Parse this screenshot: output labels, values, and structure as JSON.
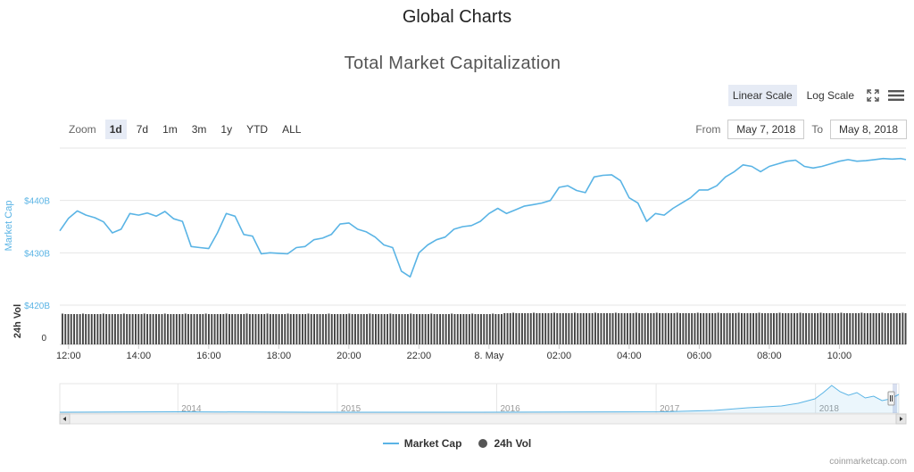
{
  "page_title": "Global Charts",
  "controls": {
    "zoom_label": "Zoom",
    "zoom_options": [
      "1d",
      "7d",
      "1m",
      "3m",
      "1y",
      "YTD",
      "ALL"
    ],
    "zoom_active": "1d",
    "scale_linear": "Linear Scale",
    "scale_log": "Log Scale",
    "scale_active": "Linear Scale",
    "from_label": "From",
    "from_value": "May 7, 2018",
    "to_label": "To",
    "to_value": "May 8, 2018"
  },
  "legend": {
    "market_cap": "Market Cap",
    "volume": "24h Vol"
  },
  "credits": "coinmarketcap.com",
  "colors": {
    "line": "#5ab4e5",
    "volume_bar": "#444444",
    "axis_label_blue": "#5ab4e5",
    "active_btn": "#e6ebf5"
  },
  "icons": {
    "fullscreen": "fullscreen-icon",
    "menu": "menu-icon"
  },
  "chart_data": {
    "type": "line",
    "title": "Total Market Capitalization",
    "ylabel": "Market Cap",
    "ylabel_volume": "24h Vol",
    "ylim": [
      420,
      450
    ],
    "yticks": [
      {
        "value": 440,
        "label": "$440B"
      },
      {
        "value": 430,
        "label": "$430B"
      },
      {
        "value": 420,
        "label": "$420B"
      }
    ],
    "volume_ytick": "0",
    "xlim": [
      11.75,
      35.9
    ],
    "xticks": [
      {
        "value": 12,
        "label": "12:00"
      },
      {
        "value": 14,
        "label": "14:00"
      },
      {
        "value": 16,
        "label": "16:00"
      },
      {
        "value": 18,
        "label": "18:00"
      },
      {
        "value": 20,
        "label": "20:00"
      },
      {
        "value": 22,
        "label": "22:00"
      },
      {
        "value": 24,
        "label": "8. May"
      },
      {
        "value": 26,
        "label": "02:00"
      },
      {
        "value": 28,
        "label": "04:00"
      },
      {
        "value": 30,
        "label": "06:00"
      },
      {
        "value": 32,
        "label": "08:00"
      },
      {
        "value": 34,
        "label": "10:00"
      }
    ],
    "market_cap_series": {
      "name": "Market Cap",
      "x": [
        11.75,
        12.0,
        12.25,
        12.5,
        12.75,
        13.0,
        13.25,
        13.5,
        13.75,
        14.0,
        14.25,
        14.5,
        14.75,
        15.0,
        15.25,
        15.5,
        15.75,
        16.0,
        16.25,
        16.5,
        16.75,
        17.0,
        17.25,
        17.5,
        17.75,
        18.0,
        18.25,
        18.5,
        18.75,
        19.0,
        19.25,
        19.5,
        19.75,
        20.0,
        20.25,
        20.5,
        20.75,
        21.0,
        21.25,
        21.5,
        21.75,
        22.0,
        22.25,
        22.5,
        22.75,
        23.0,
        23.25,
        23.5,
        23.75,
        24.0,
        24.25,
        24.5,
        24.75,
        25.0,
        25.25,
        25.5,
        25.75,
        26.0,
        26.25,
        26.5,
        26.75,
        27.0,
        27.25,
        27.5,
        27.75,
        28.0,
        28.25,
        28.5,
        28.75,
        29.0,
        29.25,
        29.5,
        29.75,
        30.0,
        30.25,
        30.5,
        30.75,
        31.0,
        31.25,
        31.5,
        31.75,
        32.0,
        32.25,
        32.5,
        32.75,
        33.0,
        33.25,
        33.5,
        33.75,
        34.0,
        34.25,
        34.5,
        34.75,
        35.0,
        35.25,
        35.5,
        35.75,
        35.9
      ],
      "values": [
        434.2,
        436.6,
        438.0,
        437.2,
        436.7,
        435.9,
        433.8,
        434.5,
        437.5,
        437.2,
        437.6,
        437.0,
        437.9,
        436.5,
        436.0,
        431.2,
        431.0,
        430.8,
        433.8,
        437.5,
        437.0,
        433.5,
        433.2,
        429.8,
        430.0,
        429.9,
        429.8,
        431.0,
        431.2,
        432.5,
        432.8,
        433.5,
        435.5,
        435.7,
        434.5,
        434.0,
        433.0,
        431.5,
        431.0,
        426.5,
        425.4,
        430.0,
        431.5,
        432.5,
        433.0,
        434.5,
        435.0,
        435.2,
        436.0,
        437.5,
        438.5,
        437.5,
        438.2,
        438.9,
        439.2,
        439.5,
        440.0,
        442.5,
        442.8,
        441.9,
        441.5,
        444.5,
        444.8,
        444.9,
        443.8,
        440.5,
        439.5,
        436.0,
        437.5,
        437.2,
        438.5,
        439.5,
        440.5,
        442.0,
        442.0,
        442.8,
        444.5,
        445.5,
        446.8,
        446.5,
        445.5,
        446.5,
        447.0,
        447.5,
        447.7,
        446.5,
        446.2,
        446.5,
        447.0,
        447.5,
        447.8,
        447.5,
        447.6,
        447.8,
        448.0,
        447.9,
        448.0,
        447.8
      ]
    },
    "volume_series": {
      "name": "24h Vol",
      "description_only": false
    },
    "navigator": {
      "labels": [
        "2014",
        "2015",
        "2016",
        "2017",
        "2018"
      ],
      "label_positions": [
        0.145,
        0.335,
        0.525,
        0.715,
        0.905
      ]
    }
  }
}
